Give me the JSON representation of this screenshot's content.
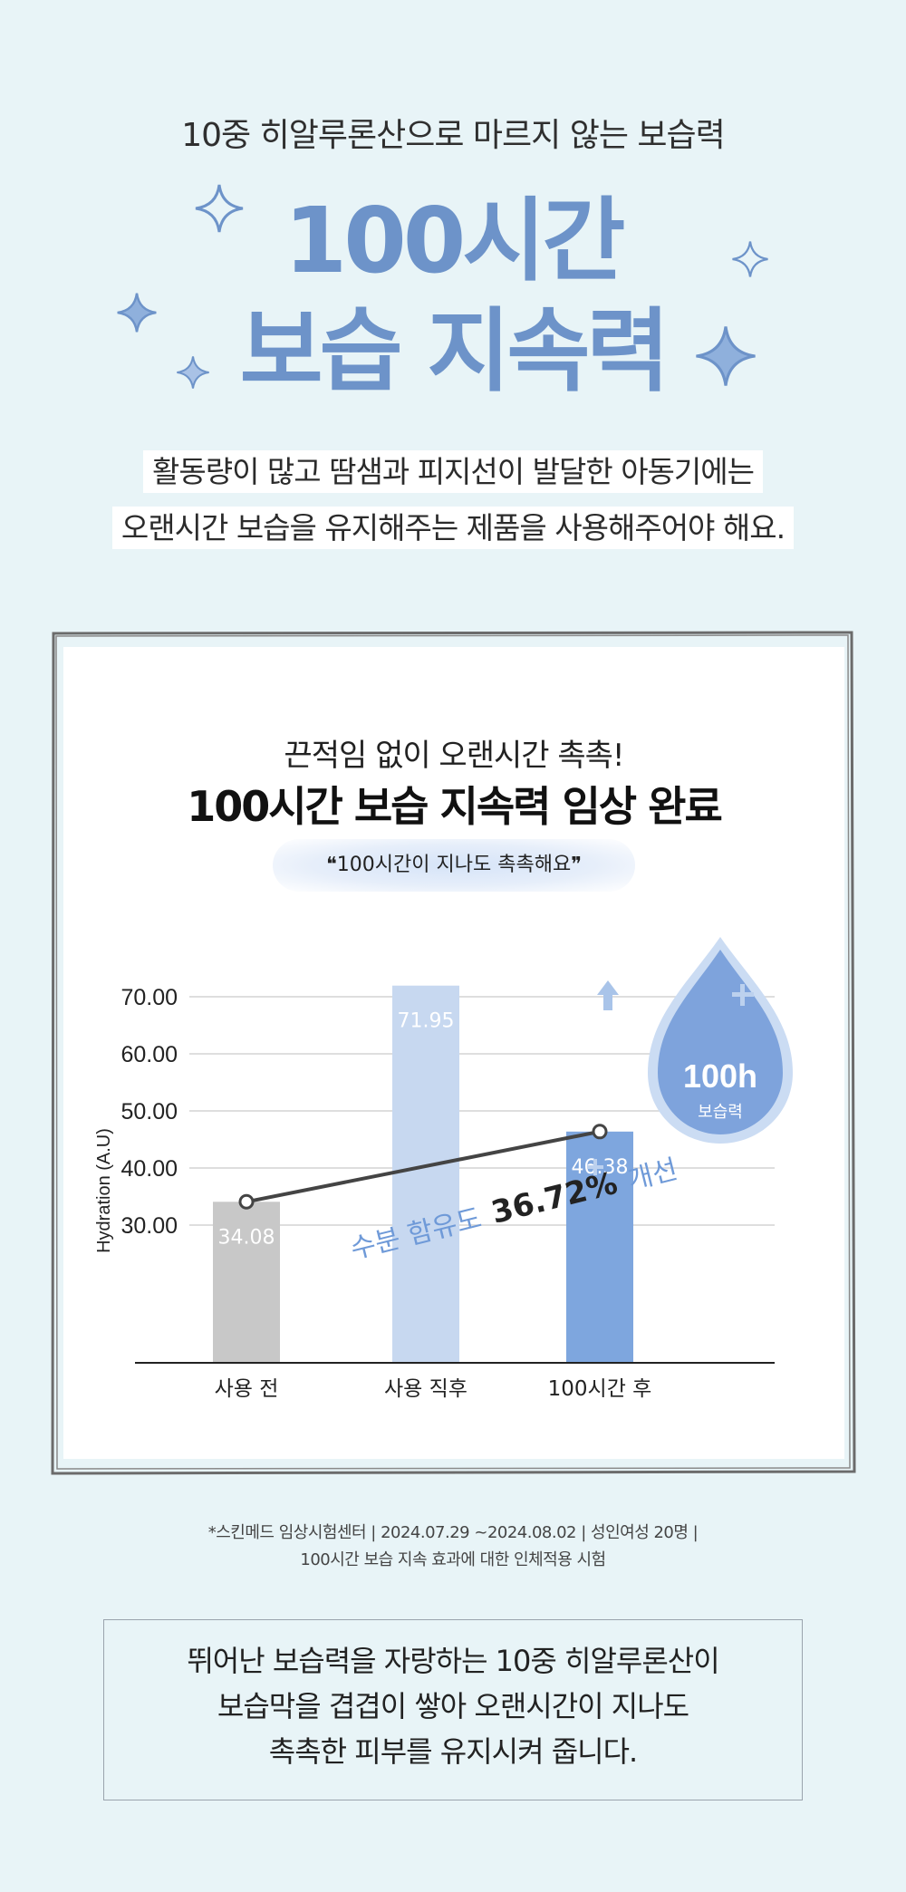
{
  "header": {
    "subtitle": "10중 히알루론산으로 마르지 않는 보습력",
    "headline_line1": "100시간",
    "headline_line2": "보습 지속력"
  },
  "description": {
    "line1": "활동량이 많고 땀샘과 피지선이 발달한 아동기에는",
    "line2": "오랜시간 보습을 유지해주는 제품을 사용해주어야 해요."
  },
  "card": {
    "subtitle": "끈적임 없이 오랜시간 촉촉!",
    "title": "100시간 보습 지속력 임상 완료",
    "quote": "❝100시간이 지나도 촉촉해요❞"
  },
  "badge": {
    "value": "100h",
    "label": "보습력"
  },
  "annotation": {
    "prefix": "수분 함유도",
    "value": "36.72%",
    "suffix": "개선"
  },
  "chart_data": {
    "type": "bar",
    "ylabel": "Hydration (A.U)",
    "categories": [
      "사용 전",
      "사용 직후",
      "100시간 후"
    ],
    "values": [
      34.08,
      71.95,
      46.38
    ],
    "value_labels": [
      "34.08",
      "71.95",
      "46.38"
    ],
    "yticks": [
      "70.00",
      "60.00",
      "50.00",
      "40.00",
      "30.00"
    ],
    "ytick_values": [
      70,
      60,
      50,
      40,
      30
    ],
    "ylim": [
      20,
      75
    ],
    "colors": [
      "#c8c8c8",
      "#c7d8f0",
      "#7ea6de"
    ],
    "grid": true,
    "trend_line": {
      "from": 0,
      "to": 2
    }
  },
  "footnote": {
    "line1": "*스킨메드 임상시험센터 | 2024.07.29 ~2024.08.02 | 성인여성 20명 |",
    "line2": "100시간 보습 지속 효과에 대한 인체적용 시험"
  },
  "summary": {
    "line1": "뛰어난 보습력을 자랑하는 10중 히알루론산이",
    "line2": "보습막을 겹겹이 쌓아 오랜시간이 지나도",
    "line3": "촉촉한 피부를 유지시켜 줍니다."
  }
}
